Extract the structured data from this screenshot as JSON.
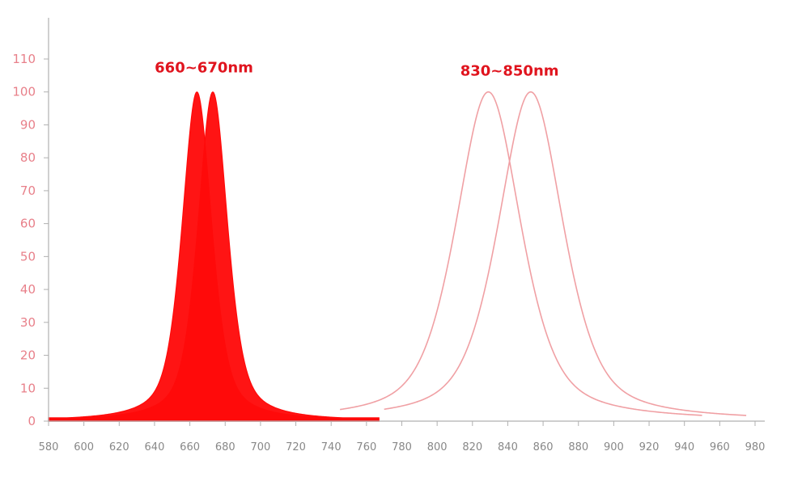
{
  "chart_data": {
    "type": "area",
    "title": "",
    "xlabel": "",
    "ylabel": "",
    "xlim": [
      580,
      980
    ],
    "ylim": [
      0,
      120
    ],
    "x_ticks": [
      580,
      600,
      620,
      640,
      660,
      680,
      700,
      720,
      740,
      760,
      780,
      800,
      820,
      840,
      860,
      880,
      900,
      920,
      940,
      960,
      980
    ],
    "y_ticks": [
      0,
      10,
      20,
      30,
      40,
      50,
      60,
      70,
      80,
      90,
      100,
      110
    ],
    "grid": false,
    "legend": "none",
    "colors": {
      "filled": "#ff0a0a",
      "outline": "#f0a0a4",
      "axis": "#b0b0b0",
      "ytick": "#e8808a",
      "xtick": "#888888",
      "annotation": "#e0141e"
    },
    "series": [
      {
        "style": "filled",
        "peak_x": 664,
        "peak_y": 100,
        "fwhm": 20,
        "x_range": [
          580,
          767
        ],
        "baseline": 1
      },
      {
        "style": "filled",
        "peak_x": 673,
        "peak_y": 100,
        "fwhm": 20,
        "x_range": [
          580,
          767
        ],
        "baseline": 1
      },
      {
        "style": "outline",
        "peak_x": 829,
        "peak_y": 100,
        "fwhm": 44,
        "x_range": [
          745,
          950
        ],
        "baseline": 1
      },
      {
        "style": "outline",
        "peak_x": 853,
        "peak_y": 100,
        "fwhm": 44,
        "x_range": [
          770,
          975
        ],
        "baseline": 1
      }
    ],
    "annotations": [
      {
        "text": "660~670nm",
        "x": 668,
        "y": 106
      },
      {
        "text": "830~850nm",
        "x": 841,
        "y": 105
      }
    ]
  }
}
